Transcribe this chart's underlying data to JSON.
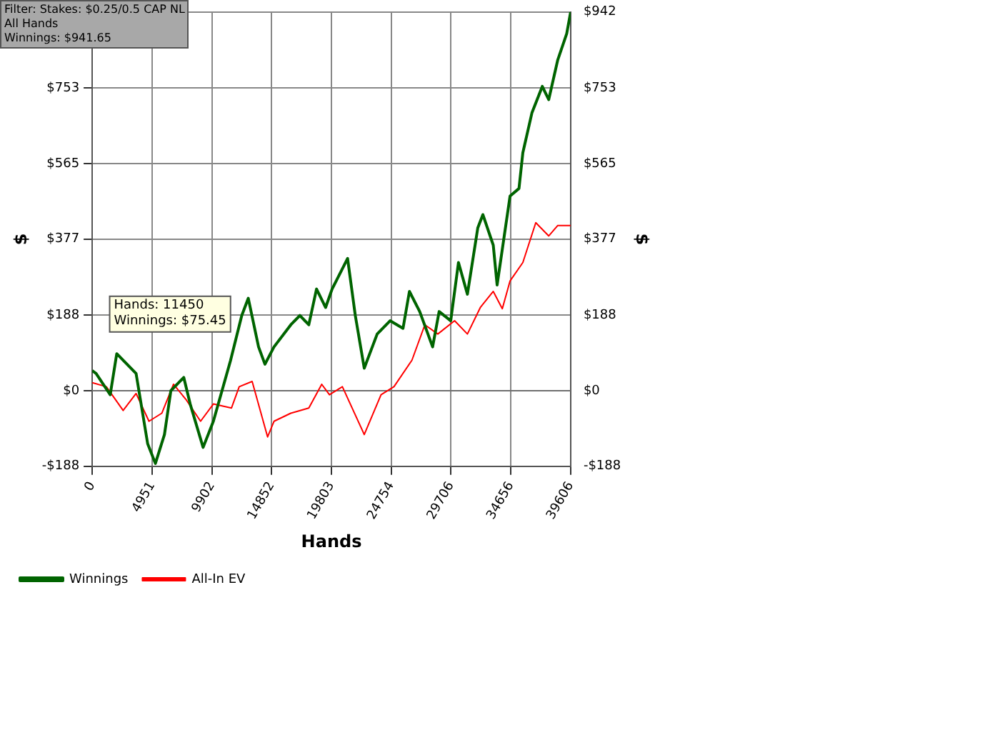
{
  "chart_data": {
    "type": "line",
    "xlabel": "Hands",
    "ylabel": "$",
    "y2label": "$",
    "xlim": [
      0,
      39606
    ],
    "xticks": [
      0,
      4951,
      9902,
      14852,
      19803,
      24754,
      29706,
      34656,
      39606
    ],
    "ylim": [
      -188,
      942
    ],
    "yticks": [
      {
        "value": -188,
        "label": "-$188"
      },
      {
        "value": 0,
        "label": "$0"
      },
      {
        "value": 188,
        "label": "$188"
      },
      {
        "value": 377,
        "label": "$377"
      },
      {
        "value": 565,
        "label": "$565"
      },
      {
        "value": 753,
        "label": "$753"
      },
      {
        "value": 942,
        "label": null
      }
    ],
    "y2lim": [
      -188,
      942
    ],
    "y2ticks": [
      {
        "value": -188,
        "label": "-$188"
      },
      {
        "value": 0,
        "label": "$0"
      },
      {
        "value": 188,
        "label": "$188"
      },
      {
        "value": 377,
        "label": "$377"
      },
      {
        "value": 565,
        "label": "$565"
      },
      {
        "value": 753,
        "label": "$753"
      },
      {
        "value": 942,
        "label": "$942"
      }
    ],
    "grid": true,
    "legend": "bottom",
    "marker": "none",
    "line_style": "solid",
    "ref_lines": [
      {
        "axis": "y",
        "value": 0,
        "color": "#707070"
      }
    ],
    "annotations": [
      "Filter: Stakes: $0.25/0.5 CAP NL\nAll Hands\nWinnings: $941.65",
      {
        "text": "Hands: 11450\nWinnings: $75.45",
        "x": 11450,
        "y": 75
      }
    ],
    "series": [
      {
        "name": "Winnings",
        "color": "#006400",
        "x": [
          0,
          320,
          1490,
          2030,
          3630,
          4590,
          5230,
          5980,
          6510,
          7580,
          8110,
          9180,
          10030,
          11450,
          12380,
          12920,
          13770,
          14300,
          15050,
          16440,
          17190,
          17930,
          18570,
          19320,
          19860,
          21140,
          21780,
          22520,
          23590,
          24660,
          25730,
          26260,
          27110,
          28180,
          28720,
          29680,
          30320,
          31060,
          31920,
          32340,
          33200,
          33520,
          33950,
          34590,
          35330,
          35650,
          36400,
          37260,
          37790,
          38540,
          39280,
          39606
        ],
        "values": [
          50,
          43,
          -10,
          92,
          43,
          -132,
          -181,
          -109,
          0,
          33,
          -33,
          -141,
          -76,
          75,
          187,
          230,
          109,
          66,
          109,
          164,
          187,
          164,
          253,
          207,
          253,
          329,
          187,
          56,
          141,
          174,
          155,
          247,
          197,
          109,
          197,
          174,
          319,
          240,
          405,
          438,
          362,
          263,
          352,
          484,
          503,
          592,
          691,
          757,
          724,
          823,
          888,
          942
        ]
      },
      {
        "name": "All-In EV",
        "color": "#ff0000",
        "x": [
          0,
          1170,
          2560,
          3630,
          4700,
          5760,
          6730,
          7790,
          8970,
          10030,
          11530,
          12170,
          13240,
          14520,
          15050,
          16440,
          17930,
          19000,
          19640,
          20710,
          22520,
          23910,
          24980,
          26470,
          27540,
          28610,
          30000,
          31060,
          32130,
          33200,
          33950,
          34590,
          35650,
          36720,
          37790,
          38540,
          39606
        ],
        "values": [
          20,
          10,
          -49,
          -7,
          -76,
          -56,
          16,
          -23,
          -76,
          -33,
          -43,
          10,
          23,
          -115,
          -76,
          -56,
          -43,
          16,
          -10,
          10,
          -109,
          -10,
          10,
          76,
          164,
          141,
          174,
          141,
          207,
          247,
          204,
          273,
          319,
          418,
          385,
          411,
          411
        ]
      }
    ]
  }
}
